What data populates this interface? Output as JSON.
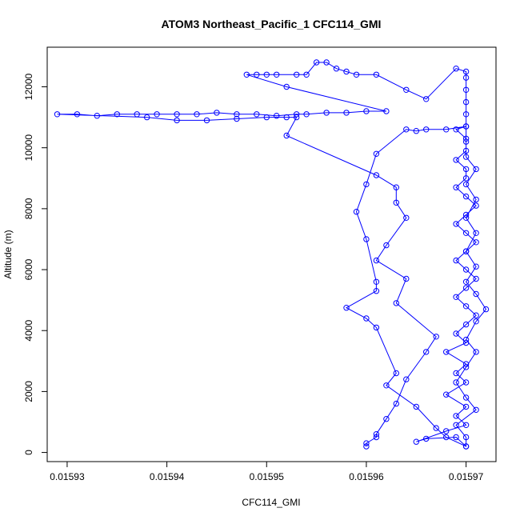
{
  "chart_data": {
    "type": "scatter",
    "title": "ATOM3 Northeast_Pacific_1 CFC114_GMI",
    "xlabel": "CFC114_GMI",
    "ylabel": "Altitude (m)",
    "xlim": [
      0.015928,
      0.015973
    ],
    "ylim": [
      -300,
      13300
    ],
    "xticks": [
      0.01593,
      0.01594,
      0.01595,
      0.01596,
      0.01597
    ],
    "xtick_labels": [
      "0.01593",
      "0.01594",
      "0.01595",
      "0.01596",
      "0.01597"
    ],
    "yticks": [
      0,
      2000,
      4000,
      6000,
      8000,
      10000,
      12000
    ],
    "ytick_labels": [
      "0",
      "2000",
      "4000",
      "6000",
      "8000",
      "10000",
      "12000"
    ],
    "series_color": "#0000ff",
    "marker": "open-circle",
    "connected": true,
    "grid": false,
    "series": [
      {
        "points": [
          [
            0.01597,
            200
          ],
          [
            0.015969,
            500
          ],
          [
            0.015966,
            450
          ],
          [
            0.015965,
            350
          ],
          [
            0.015968,
            700
          ],
          [
            0.01597,
            900
          ],
          [
            0.015969,
            1200
          ],
          [
            0.01597,
            1500
          ],
          [
            0.015968,
            1900
          ],
          [
            0.01597,
            2300
          ],
          [
            0.015969,
            2600
          ],
          [
            0.01597,
            2900
          ],
          [
            0.015968,
            3300
          ],
          [
            0.01597,
            3600
          ],
          [
            0.015969,
            3900
          ],
          [
            0.01597,
            4200
          ],
          [
            0.015971,
            4500
          ],
          [
            0.01597,
            4800
          ],
          [
            0.015969,
            5100
          ],
          [
            0.01597,
            5400
          ],
          [
            0.015971,
            5700
          ],
          [
            0.01597,
            6000
          ],
          [
            0.015969,
            6300
          ],
          [
            0.01597,
            6600
          ],
          [
            0.015971,
            6900
          ],
          [
            0.01597,
            7200
          ],
          [
            0.015969,
            7500
          ],
          [
            0.01597,
            7800
          ],
          [
            0.015971,
            8100
          ],
          [
            0.01597,
            8400
          ],
          [
            0.015969,
            8700
          ],
          [
            0.01597,
            9000
          ],
          [
            0.01597,
            9300
          ],
          [
            0.015969,
            9600
          ],
          [
            0.01597,
            9900
          ],
          [
            0.01597,
            10300
          ],
          [
            0.015969,
            10600
          ],
          [
            0.01597,
            10700
          ],
          [
            0.015968,
            10600
          ],
          [
            0.015966,
            10600
          ],
          [
            0.015965,
            10550
          ],
          [
            0.015964,
            10600
          ],
          [
            0.015961,
            9800
          ],
          [
            0.01596,
            8800
          ],
          [
            0.015959,
            7900
          ],
          [
            0.01596,
            7000
          ],
          [
            0.015961,
            5600
          ],
          [
            0.015961,
            5300
          ],
          [
            0.015958,
            4750
          ],
          [
            0.01596,
            4400
          ],
          [
            0.015961,
            4100
          ],
          [
            0.015963,
            2600
          ],
          [
            0.015962,
            2200
          ],
          [
            0.015965,
            1500
          ],
          [
            0.015967,
            800
          ],
          [
            0.015968,
            500
          ],
          [
            0.01597,
            200
          ],
          [
            0.01597,
            500
          ],
          [
            0.015969,
            900
          ],
          [
            0.015971,
            1400
          ],
          [
            0.01597,
            1800
          ],
          [
            0.015969,
            2300
          ],
          [
            0.01597,
            2800
          ],
          [
            0.015971,
            3300
          ],
          [
            0.01597,
            3700
          ],
          [
            0.015971,
            4300
          ],
          [
            0.015972,
            4700
          ],
          [
            0.015971,
            5200
          ],
          [
            0.01597,
            5600
          ],
          [
            0.015971,
            6100
          ],
          [
            0.01597,
            6600
          ],
          [
            0.015971,
            7200
          ],
          [
            0.01597,
            7700
          ],
          [
            0.015971,
            8300
          ],
          [
            0.01597,
            8800
          ],
          [
            0.015971,
            9300
          ],
          [
            0.01597,
            9700
          ],
          [
            0.01597,
            10200
          ],
          [
            0.01597,
            10700
          ],
          [
            0.01597,
            11100
          ],
          [
            0.01597,
            11500
          ],
          [
            0.01597,
            11900
          ],
          [
            0.01597,
            12300
          ],
          [
            0.01597,
            12500
          ],
          [
            0.015969,
            12600
          ],
          [
            0.015966,
            11600
          ],
          [
            0.015964,
            11900
          ],
          [
            0.015961,
            12400
          ],
          [
            0.015959,
            12400
          ],
          [
            0.015958,
            12500
          ],
          [
            0.015957,
            12600
          ],
          [
            0.015956,
            12800
          ],
          [
            0.015955,
            12800
          ],
          [
            0.015954,
            12400
          ],
          [
            0.015953,
            12400
          ],
          [
            0.015951,
            12400
          ],
          [
            0.01595,
            12400
          ],
          [
            0.015949,
            12400
          ],
          [
            0.015948,
            12400
          ],
          [
            0.015952,
            12000
          ],
          [
            0.015962,
            11200
          ],
          [
            0.01596,
            11200
          ],
          [
            0.015958,
            11150
          ],
          [
            0.015956,
            11150
          ],
          [
            0.015954,
            11100
          ],
          [
            0.015953,
            11100
          ],
          [
            0.015951,
            11050
          ],
          [
            0.015949,
            11100
          ],
          [
            0.015947,
            11100
          ],
          [
            0.015945,
            11150
          ],
          [
            0.015943,
            11100
          ],
          [
            0.015941,
            11100
          ],
          [
            0.015939,
            11100
          ],
          [
            0.015937,
            11100
          ],
          [
            0.015935,
            11100
          ],
          [
            0.015933,
            11050
          ],
          [
            0.015931,
            11100
          ],
          [
            0.015929,
            11100
          ],
          [
            0.015938,
            11000
          ],
          [
            0.015941,
            10900
          ],
          [
            0.015944,
            10900
          ],
          [
            0.015947,
            10950
          ],
          [
            0.01595,
            11000
          ],
          [
            0.015952,
            11000
          ],
          [
            0.015953,
            11000
          ],
          [
            0.015952,
            10400
          ],
          [
            0.015961,
            9100
          ],
          [
            0.015963,
            8700
          ],
          [
            0.015963,
            8200
          ],
          [
            0.015964,
            7700
          ],
          [
            0.015962,
            6800
          ],
          [
            0.015961,
            6300
          ],
          [
            0.015964,
            5700
          ],
          [
            0.015963,
            4900
          ],
          [
            0.015967,
            3800
          ],
          [
            0.015966,
            3300
          ],
          [
            0.015964,
            2400
          ],
          [
            0.015963,
            1600
          ],
          [
            0.015962,
            1100
          ],
          [
            0.015961,
            600
          ],
          [
            0.015961,
            500
          ],
          [
            0.01596,
            300
          ],
          [
            0.01596,
            200
          ]
        ]
      }
    ]
  }
}
